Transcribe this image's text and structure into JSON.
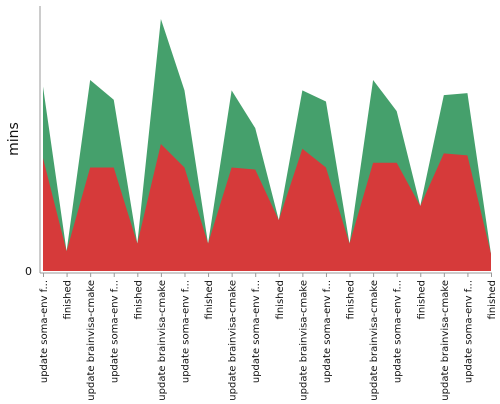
{
  "chart_data": {
    "type": "area",
    "ylabel": "mins",
    "y_ticks": [
      "0"
    ],
    "ylim": [
      0,
      100
    ],
    "categories": [
      "update soma-env f...",
      "finished",
      "update brainvisa-cmake",
      "update soma-env f...",
      "finished",
      "update brainvisa-cmake",
      "update soma-env f...",
      "finished",
      "update brainvisa-cmake",
      "update soma-env f...",
      "finished",
      "update brainvisa-cmake",
      "update soma-env f...",
      "finished",
      "update brainvisa-cmake",
      "update soma-env f...",
      "finished",
      "update brainvisa-cmake",
      "update soma-env f...",
      "finished"
    ],
    "series": [
      {
        "color": "#45a06c",
        "values": [
          72.9,
          7.8,
          75.5,
          67.7,
          10.8,
          99.6,
          71.4,
          10.8,
          71.4,
          56.5,
          20.1,
          71.4,
          67.0,
          10.8,
          75.5,
          63.2,
          25.7,
          69.5,
          70.3,
          6.7
        ]
      },
      {
        "color": "#d63a3a",
        "values": [
          44.6,
          7.8,
          40.9,
          40.9,
          10.8,
          50.2,
          40.9,
          10.8,
          40.9,
          40.1,
          20.1,
          48.3,
          40.9,
          10.8,
          42.8,
          42.8,
          25.7,
          46.5,
          45.7,
          6.7
        ]
      }
    ],
    "legend": "none",
    "grid": false
  }
}
